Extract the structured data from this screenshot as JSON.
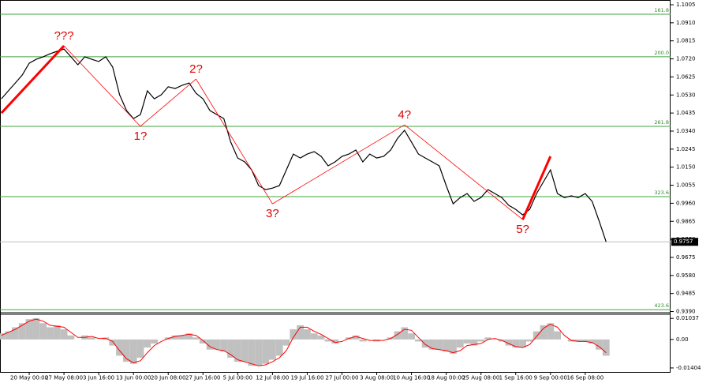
{
  "chart_data": {
    "type": "line",
    "color": "#000000",
    "categories": [
      null,
      null,
      null,
      null,
      "20 May 00:00",
      null,
      null,
      null,
      null,
      "27 May 08:00",
      null,
      null,
      null,
      null,
      "3 Jun 16:00",
      null,
      null,
      null,
      null,
      "13 Jun 00:00",
      null,
      null,
      null,
      null,
      "20 Jun 08:00",
      null,
      null,
      null,
      null,
      "27 Jun 16:00",
      null,
      null,
      null,
      null,
      "5 Jul 00:00",
      null,
      null,
      null,
      null,
      "12 Jul 08:00",
      null,
      null,
      null,
      null,
      "19 Jul 16:00",
      null,
      null,
      null,
      null,
      "27 Jul 00:00",
      null,
      null,
      null,
      null,
      "3 Aug 08:00",
      null,
      null,
      null,
      null,
      "10 Aug 16:00",
      null,
      null,
      null,
      null,
      "18 Aug 00:00",
      null,
      null,
      null,
      null,
      "25 Aug 08:00",
      null,
      null,
      null,
      null,
      "1 Sep 16:00",
      null,
      null,
      null,
      null,
      "9 Sep 00:00",
      null,
      null,
      null,
      null,
      "16 Sep 08:00",
      null,
      null,
      null
    ],
    "values": [
      1.051,
      1.0552,
      1.0593,
      1.0635,
      1.0697,
      1.0718,
      1.0731,
      1.0747,
      1.076,
      1.0772,
      1.0731,
      1.0689,
      1.0731,
      1.0718,
      1.0706,
      1.0731,
      1.0677,
      1.0531,
      1.0448,
      1.0406,
      1.0427,
      1.0552,
      1.051,
      1.0531,
      1.0573,
      1.0564,
      1.0581,
      1.0593,
      1.0539,
      1.051,
      1.0448,
      1.0427,
      1.0406,
      1.0282,
      1.0198,
      1.0178,
      1.0136,
      1.0053,
      1.0032,
      1.004,
      1.0053,
      1.0136,
      1.0219,
      1.0198,
      1.0219,
      1.0232,
      1.0207,
      1.0157,
      1.0178,
      1.0207,
      1.0219,
      1.024,
      1.0178,
      1.0219,
      1.0198,
      1.0207,
      1.024,
      1.0302,
      1.0344,
      1.0282,
      1.0219,
      1.0198,
      1.0178,
      1.0157,
      1.0053,
      0.9957,
      0.999,
      1.0011,
      0.997,
      0.999,
      1.0032,
      1.0011,
      0.999,
      0.9949,
      0.9928,
      0.9899,
      0.9928,
      1.0011,
      1.0074,
      1.0136,
      1.0011,
      0.999,
      0.9999,
      0.999,
      1.0011,
      0.997,
      0.9866,
      0.9757
    ],
    "ylim": [
      0.9388,
      1.103
    ],
    "yticks": [
      1.1005,
      {
        "value": 1.091,
        "label": "1.0910"
      },
      1.0815,
      {
        "value": 1.072,
        "label": "1.0720"
      },
      1.0625,
      {
        "value": 1.053,
        "label": "1.0530"
      },
      1.0435,
      {
        "value": 1.034,
        "label": "1.0340"
      },
      1.0245,
      {
        "value": 1.015,
        "label": "1.0150"
      },
      1.0055,
      {
        "value": 0.996,
        "label": "0.9960"
      },
      0.9865,
      {
        "value": 0.977,
        "label": "0.9770"
      },
      0.9675,
      {
        "value": 0.958,
        "label": "0.9580"
      },
      0.9485,
      {
        "value": 0.939,
        "label": "0.9390"
      }
    ],
    "level_color": "#3fa53f",
    "levels": [
      {
        "value": 1.0955,
        "label": "161.8"
      },
      {
        "value": 1.0731,
        "label": "200.0"
      },
      {
        "value": 1.0365,
        "label": "261.8"
      },
      {
        "value": 0.9995,
        "label": "323.6"
      },
      {
        "value": 0.94,
        "label": "423.6"
      }
    ],
    "current_price": {
      "value": 0.9757,
      "label": "0.9757"
    },
    "waves": {
      "color": "#ff0000",
      "bold_segments": [
        0,
        6
      ],
      "points": [
        {
          "index": 0,
          "value": 1.0435
        },
        {
          "index": 9,
          "value": 1.0789,
          "label": "???"
        },
        {
          "index": 20,
          "value": 1.0365,
          "label": "1?"
        },
        {
          "index": 28,
          "value": 1.0614,
          "label": "2?"
        },
        {
          "index": 39,
          "value": 0.9957,
          "label": "3?"
        },
        {
          "index": 58,
          "value": 1.0373,
          "label": "4?"
        },
        {
          "index": 75,
          "value": 0.9874,
          "label": "5?"
        },
        {
          "index": 79,
          "value": 1.0207
        }
      ]
    },
    "oscillator": {
      "type": "bar",
      "color": "#c0c0c0",
      "values": [
        0.003,
        0.004,
        0.006,
        0.008,
        0.01,
        0.0105,
        0.008,
        0.006,
        0.007,
        0.005,
        0.002,
        0,
        0.002,
        0.001,
        0,
        0.001,
        -0.003,
        -0.008,
        -0.011,
        -0.012,
        -0.009,
        -0.004,
        -0.002,
        0,
        0.001,
        0.002,
        0.002,
        0.003,
        0.001,
        -0.002,
        -0.005,
        -0.005,
        -0.006,
        -0.009,
        -0.011,
        -0.011,
        -0.013,
        -0.013,
        -0.012,
        -0.01,
        -0.008,
        -0.003,
        0.005,
        0.007,
        0.005,
        0.003,
        0.002,
        -0.001,
        -0.002,
        0,
        0.001,
        0.002,
        -0.001,
        0,
        -0.001,
        0,
        0.001,
        0.004,
        0.006,
        0.003,
        -0.001,
        -0.004,
        -0.005,
        -0.005,
        -0.006,
        -0.007,
        -0.004,
        -0.002,
        -0.003,
        -0.001,
        0.001,
        0,
        -0.001,
        -0.003,
        -0.004,
        -0.004,
        -0.001,
        0.004,
        0.007,
        0.008,
        0.004,
        0,
        -0.001,
        -0.001,
        -0.001,
        -0.002,
        -0.005,
        -0.008
      ],
      "signal": {
        "color": "#ff0000",
        "values": [
          0.002,
          0.0035,
          0.005,
          0.007,
          0.009,
          0.01,
          0.009,
          0.007,
          0.0065,
          0.006,
          0.0035,
          0.001,
          0.001,
          0.0015,
          0.0005,
          0.0005,
          -0.001,
          -0.0055,
          -0.0095,
          -0.0115,
          -0.0105,
          -0.0065,
          -0.003,
          -0.001,
          0.0005,
          0.0015,
          0.002,
          0.0025,
          0.002,
          -0.0005,
          -0.0035,
          -0.005,
          -0.0055,
          -0.0075,
          -0.01,
          -0.011,
          -0.012,
          -0.013,
          -0.0125,
          -0.011,
          -0.009,
          -0.0055,
          0.001,
          0.006,
          0.006,
          0.004,
          0.0025,
          0.0005,
          -0.0015,
          -0.001,
          0.0005,
          0.0015,
          0.0005,
          -0.0005,
          -0.0005,
          -0.0005,
          0.0005,
          0.0025,
          0.005,
          0.0045,
          0.001,
          -0.0025,
          -0.0045,
          -0.005,
          -0.0055,
          -0.0065,
          -0.0055,
          -0.003,
          -0.0025,
          -0.002,
          0,
          0.0005,
          -0.0005,
          -0.002,
          -0.0035,
          -0.004,
          -0.0025,
          0.0015,
          0.0055,
          0.0075,
          0.006,
          0.002,
          -0.0005,
          -0.001,
          -0.001,
          -0.0015,
          -0.0035,
          -0.0065
        ]
      },
      "ylim": [
        -0.0164,
        0.0124
      ],
      "yticks": [
        0.01037,
        {
          "value": 0,
          "label": "0.00"
        },
        -0.01404
      ]
    }
  }
}
